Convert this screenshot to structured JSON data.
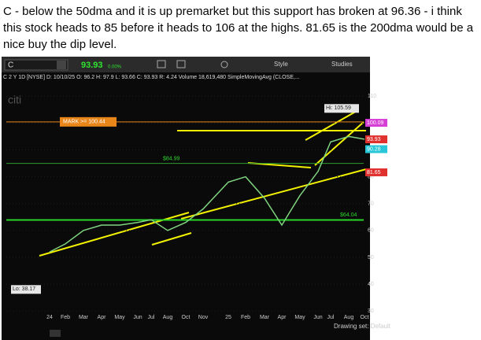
{
  "message": {
    "lines": [
      "C - below the 50dma and it is up premarket but this support has broken at 96.36 - i think",
      "this stock heads to 85 before it heads to 106 at the highs. 81.65 is the 200dma would be a",
      "nice buy the dip level."
    ]
  },
  "toolbar": {
    "symbol": "C",
    "price": "93.93",
    "change": "0.00%",
    "style": "Style",
    "studies": "Studies"
  },
  "chart_header": "C 2 Y 1D [NYSE] D: 10/10/25 O: 96.2 H: 97.9 L: 93.66 C: 93.93 R: 4.24 Volume 18,619,480 SimpleMovingAvg (CLOSE,...",
  "footer": {
    "drawing_set": "Drawing set: Default"
  },
  "chart_data": {
    "type": "line",
    "categories": [
      "24",
      "Feb",
      "Mar",
      "Apr",
      "May",
      "Jun",
      "Jul",
      "Aug",
      "Oct",
      "Nov",
      "25",
      "Feb",
      "Mar",
      "Apr",
      "May",
      "Jun",
      "Jul",
      "Aug",
      "Oct"
    ],
    "values": [
      52,
      55,
      60,
      62,
      62,
      63,
      64,
      60,
      63,
      68,
      78,
      80,
      72,
      62,
      73,
      82,
      93,
      95,
      94
    ],
    "color": "#7fd47f",
    "ylim": [
      28,
      113
    ],
    "yticks": [
      30,
      40,
      50,
      60,
      70,
      80,
      90,
      100,
      110
    ],
    "annotations": [
      {
        "value": 105.59,
        "label": "Hi: 105.59"
      },
      {
        "value": 38.17,
        "label": "Lo: 38.17"
      },
      {
        "value": 100.44,
        "label": "MARK >= 100.44"
      },
      {
        "value": 84.99,
        "label": "$84.99"
      },
      {
        "value": 64.04,
        "label": "$64.04"
      }
    ],
    "price_tags": [
      {
        "value": 100.09,
        "color": "#d63fd6"
      },
      {
        "value": 93.93,
        "color": "#e0312f"
      },
      {
        "value": 90.28,
        "color": "#27c6d8"
      },
      {
        "value": 81.65,
        "color": "#e0312f"
      }
    ]
  }
}
